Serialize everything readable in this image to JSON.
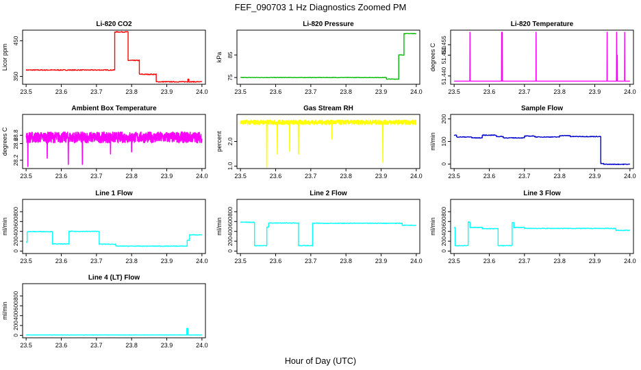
{
  "figure": {
    "title": "FEF_090703  1 Hz Diagnostics Zoomed PM",
    "xlabel": "Hour of Day (UTC)",
    "background": "#ffffff"
  },
  "chart_data": [
    {
      "type": "line",
      "title": "Li-820 CO2",
      "ylabel": "Licor ppm",
      "color": "#ff0000",
      "xlim": [
        23.49,
        24.01
      ],
      "ylim": [
        328,
        480
      ],
      "x_ticks": [
        "23.5",
        "23.6",
        "23.7",
        "23.8",
        "23.9",
        "24.0"
      ],
      "y_ticks": [
        {
          "value": 350,
          "label": "350"
        },
        {
          "value": 450,
          "label": "450"
        }
      ],
      "series": [
        {
          "style": "noisy",
          "noise": 1.2,
          "segments": [
            {
              "x0": 23.5,
              "x1": 23.752,
              "y": 368
            },
            {
              "x0": 23.752,
              "x1": 23.79,
              "y": 475
            },
            {
              "x0": 23.79,
              "x1": 23.822,
              "y": 395
            },
            {
              "x0": 23.822,
              "x1": 23.87,
              "y": 356
            },
            {
              "x0": 23.87,
              "x1": 23.96,
              "y": 335
            },
            {
              "x0": 23.96,
              "x1": 23.963,
              "y": 343
            },
            {
              "x0": 23.963,
              "x1": 24.0,
              "y": 335
            }
          ]
        }
      ]
    },
    {
      "type": "line",
      "title": "Li-820 Pressure",
      "ylabel": "kPa",
      "color": "#00bb00",
      "xlim": [
        23.49,
        24.01
      ],
      "ylim": [
        72,
        96
      ],
      "x_ticks": [
        "23.5",
        "23.6",
        "23.7",
        "23.8",
        "23.9",
        "24.0"
      ],
      "y_ticks": [
        {
          "value": 75,
          "label": "75"
        },
        {
          "value": 85,
          "label": "85"
        }
      ],
      "series": [
        {
          "style": "noisy",
          "noise": 0.1,
          "segments": [
            {
              "x0": 23.5,
              "x1": 23.915,
              "y": 75
            },
            {
              "x0": 23.915,
              "x1": 23.95,
              "y": 74.3
            },
            {
              "x0": 23.95,
              "x1": 23.965,
              "y": 85
            },
            {
              "x0": 23.965,
              "x1": 24.0,
              "y": 94.5
            }
          ]
        }
      ]
    },
    {
      "type": "line",
      "title": "Li-820 Temperature",
      "ylabel": "degrees C",
      "color": "#ff00ff",
      "xlim": [
        23.49,
        24.01
      ],
      "ylim": [
        51.436,
        51.462
      ],
      "x_ticks": [
        "23.5",
        "23.6",
        "23.7",
        "23.8",
        "23.9",
        "24.0"
      ],
      "y_ticks": [
        {
          "value": 51.44,
          "label": "51.440"
        },
        {
          "value": 51.45,
          "label": "51.450"
        },
        {
          "value": 51.455,
          "label": "51.455"
        }
      ],
      "series": [
        {
          "style": "spikes",
          "baseline": 51.4375,
          "spikes": [
            {
              "x": 23.545,
              "y": 51.461
            },
            {
              "x": 23.635,
              "y": 51.461
            },
            {
              "x": 23.637,
              "y": 51.461
            },
            {
              "x": 23.733,
              "y": 51.461
            },
            {
              "x": 23.935,
              "y": 51.461
            },
            {
              "x": 23.962,
              "y": 51.461
            },
            {
              "x": 23.964,
              "y": 51.45
            },
            {
              "x": 23.985,
              "y": 51.461
            }
          ]
        }
      ]
    },
    {
      "type": "line",
      "title": "Ambient Box Temperature",
      "ylabel": "degrees C",
      "color": "#ff00ff",
      "xlim": [
        23.49,
        24.01
      ],
      "ylim": [
        28.0,
        29.3
      ],
      "x_ticks": [
        "23.5",
        "23.6",
        "23.7",
        "23.8",
        "23.9",
        "24.0"
      ],
      "y_ticks": [
        {
          "value": 28.2,
          "label": "28.2"
        },
        {
          "value": 28.6,
          "label": "28.6"
        },
        {
          "value": 28.8,
          "label": "28.8"
        }
      ],
      "series": [
        {
          "style": "dense",
          "center": 28.75,
          "spread": 0.13,
          "points": 900,
          "dips": [
            {
              "x": 23.505,
              "y": 28.05
            },
            {
              "x": 23.56,
              "y": 28.25
            },
            {
              "x": 23.62,
              "y": 28.1
            },
            {
              "x": 23.66,
              "y": 28.1
            },
            {
              "x": 23.74,
              "y": 28.35
            },
            {
              "x": 23.8,
              "y": 28.4
            }
          ]
        }
      ]
    },
    {
      "type": "line",
      "title": "Gas Stream RH",
      "ylabel": "percent",
      "color": "#ffff00",
      "xlim": [
        23.49,
        24.01
      ],
      "ylim": [
        0.9,
        3.1
      ],
      "x_ticks": [
        "23.5",
        "23.6",
        "23.7",
        "23.8",
        "23.9",
        "24.0"
      ],
      "y_ticks": [
        {
          "value": 1.0,
          "label": "1.0"
        },
        {
          "value": 2.0,
          "label": "2.0"
        }
      ],
      "series": [
        {
          "style": "dense",
          "center": 2.78,
          "spread": 0.09,
          "points": 900,
          "dips": [
            {
              "x": 23.575,
              "y": 0.95
            },
            {
              "x": 23.605,
              "y": 1.5
            },
            {
              "x": 23.64,
              "y": 1.6
            },
            {
              "x": 23.665,
              "y": 1.5
            },
            {
              "x": 23.76,
              "y": 2.1
            },
            {
              "x": 23.905,
              "y": 1.15
            }
          ]
        }
      ]
    },
    {
      "type": "line",
      "title": "Sample Flow",
      "ylabel": "ml/min",
      "color": "#0000cc",
      "xlim": [
        23.49,
        24.01
      ],
      "ylim": [
        -20,
        220
      ],
      "x_ticks": [
        "23.5",
        "23.6",
        "23.7",
        "23.8",
        "23.9",
        "24.0"
      ],
      "y_ticks": [
        {
          "value": 0,
          "label": "0"
        },
        {
          "value": 100,
          "label": "100"
        },
        {
          "value": 200,
          "label": "200"
        }
      ],
      "series": [
        {
          "style": "noisy",
          "noise": 1.5,
          "segments": [
            {
              "x0": 23.5,
              "x1": 23.507,
              "y": 128
            },
            {
              "x0": 23.507,
              "x1": 23.55,
              "y": 120
            },
            {
              "x0": 23.55,
              "x1": 23.58,
              "y": 116
            },
            {
              "x0": 23.58,
              "x1": 23.62,
              "y": 128
            },
            {
              "x0": 23.62,
              "x1": 23.64,
              "y": 122
            },
            {
              "x0": 23.64,
              "x1": 23.7,
              "y": 116
            },
            {
              "x0": 23.7,
              "x1": 23.73,
              "y": 124
            },
            {
              "x0": 23.73,
              "x1": 23.8,
              "y": 120
            },
            {
              "x0": 23.8,
              "x1": 23.83,
              "y": 126
            },
            {
              "x0": 23.83,
              "x1": 23.917,
              "y": 122
            },
            {
              "x0": 23.917,
              "x1": 23.925,
              "y": 2
            },
            {
              "x0": 23.925,
              "x1": 24.0,
              "y": -1
            }
          ]
        }
      ]
    },
    {
      "type": "line",
      "title": "Line 1 Flow",
      "ylabel": "ml/min",
      "color": "#00ffff",
      "xlim": [
        23.49,
        24.01
      ],
      "ylim": [
        -50,
        1050
      ],
      "x_ticks": [
        "23.5",
        "23.6",
        "23.7",
        "23.8",
        "23.9",
        "24.0"
      ],
      "y_ticks": [
        {
          "value": 0,
          "label": "0"
        },
        {
          "value": 200,
          "label": "200"
        },
        {
          "value": 400,
          "label": "400"
        },
        {
          "value": 600,
          "label": "600"
        },
        {
          "value": 800,
          "label": "800"
        }
      ],
      "series": [
        {
          "style": "noisy",
          "noise": 6,
          "segments": [
            {
              "x0": 23.5,
              "x1": 23.503,
              "y": 180
            },
            {
              "x0": 23.503,
              "x1": 23.575,
              "y": 395
            },
            {
              "x0": 23.575,
              "x1": 23.622,
              "y": 145
            },
            {
              "x0": 23.622,
              "x1": 23.708,
              "y": 400
            },
            {
              "x0": 23.708,
              "x1": 23.755,
              "y": 140
            },
            {
              "x0": 23.755,
              "x1": 23.958,
              "y": 100
            },
            {
              "x0": 23.958,
              "x1": 23.965,
              "y": 220
            },
            {
              "x0": 23.965,
              "x1": 24.0,
              "y": 330
            }
          ]
        }
      ]
    },
    {
      "type": "line",
      "title": "Line 2 Flow",
      "ylabel": "ml/min",
      "color": "#00ffff",
      "xlim": [
        23.49,
        24.01
      ],
      "ylim": [
        -50,
        1050
      ],
      "x_ticks": [
        "23.5",
        "23.6",
        "23.7",
        "23.8",
        "23.9",
        "24.0"
      ],
      "y_ticks": [
        {
          "value": 0,
          "label": "0"
        },
        {
          "value": 200,
          "label": "200"
        },
        {
          "value": 400,
          "label": "400"
        },
        {
          "value": 600,
          "label": "600"
        },
        {
          "value": 800,
          "label": "800"
        }
      ],
      "series": [
        {
          "style": "noisy",
          "noise": 6,
          "segments": [
            {
              "x0": 23.5,
              "x1": 23.54,
              "y": 585
            },
            {
              "x0": 23.54,
              "x1": 23.575,
              "y": 110
            },
            {
              "x0": 23.575,
              "x1": 23.58,
              "y": 490
            },
            {
              "x0": 23.58,
              "x1": 23.665,
              "y": 570
            },
            {
              "x0": 23.665,
              "x1": 23.705,
              "y": 110
            },
            {
              "x0": 23.705,
              "x1": 23.96,
              "y": 565
            },
            {
              "x0": 23.96,
              "x1": 24.0,
              "y": 525
            }
          ]
        }
      ]
    },
    {
      "type": "line",
      "title": "Line 3 Flow",
      "ylabel": "ml/min",
      "color": "#00ffff",
      "xlim": [
        23.49,
        24.01
      ],
      "ylim": [
        -50,
        1050
      ],
      "x_ticks": [
        "23.5",
        "23.6",
        "23.7",
        "23.8",
        "23.9",
        "24.0"
      ],
      "y_ticks": [
        {
          "value": 0,
          "label": "0"
        },
        {
          "value": 200,
          "label": "200"
        },
        {
          "value": 400,
          "label": "400"
        },
        {
          "value": 600,
          "label": "600"
        },
        {
          "value": 800,
          "label": "800"
        }
      ],
      "series": [
        {
          "style": "noisy",
          "noise": 6,
          "segments": [
            {
              "x0": 23.5,
              "x1": 23.503,
              "y": 480
            },
            {
              "x0": 23.503,
              "x1": 23.54,
              "y": 110
            },
            {
              "x0": 23.54,
              "x1": 23.545,
              "y": 590
            },
            {
              "x0": 23.545,
              "x1": 23.58,
              "y": 480
            },
            {
              "x0": 23.58,
              "x1": 23.625,
              "y": 455
            },
            {
              "x0": 23.625,
              "x1": 23.665,
              "y": 110
            },
            {
              "x0": 23.665,
              "x1": 23.67,
              "y": 580
            },
            {
              "x0": 23.67,
              "x1": 23.7,
              "y": 480
            },
            {
              "x0": 23.7,
              "x1": 23.96,
              "y": 460
            },
            {
              "x0": 23.96,
              "x1": 24.0,
              "y": 420
            }
          ]
        }
      ]
    },
    {
      "type": "line",
      "title": "Line 4 (LT) Flow",
      "ylabel": "ml/min",
      "color": "#00ffff",
      "xlim": [
        23.49,
        24.01
      ],
      "ylim": [
        -50,
        1050
      ],
      "x_ticks": [
        "23.5",
        "23.6",
        "23.7",
        "23.8",
        "23.9",
        "24.0"
      ],
      "y_ticks": [
        {
          "value": 0,
          "label": "0"
        },
        {
          "value": 200,
          "label": "200"
        },
        {
          "value": 400,
          "label": "400"
        },
        {
          "value": 600,
          "label": "600"
        },
        {
          "value": 800,
          "label": "800"
        }
      ],
      "series": [
        {
          "style": "noisy",
          "noise": 3,
          "segments": [
            {
              "x0": 23.5,
              "x1": 23.957,
              "y": 8
            },
            {
              "x0": 23.957,
              "x1": 23.96,
              "y": 140
            },
            {
              "x0": 23.96,
              "x1": 24.0,
              "y": 8
            }
          ]
        }
      ]
    }
  ]
}
